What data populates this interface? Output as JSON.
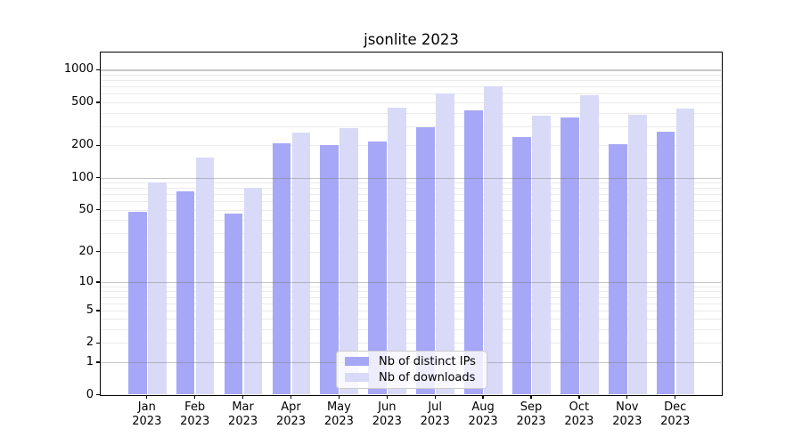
{
  "title": "jsonlite 2023",
  "chart_data": {
    "type": "bar",
    "title": "jsonlite 2023",
    "categories": [
      "Jan",
      "Feb",
      "Mar",
      "Apr",
      "May",
      "Jun",
      "Jul",
      "Aug",
      "Sep",
      "Oct",
      "Nov",
      "Dec"
    ],
    "x_tick_second_line": "2023",
    "series": [
      {
        "name": "Nb of distinct IPs",
        "color": "#a7a7f7",
        "values": [
          48,
          75,
          46,
          211,
          202,
          219,
          295,
          426,
          240,
          361,
          206,
          267
        ]
      },
      {
        "name": "Nb of downloads",
        "color": "#d9d9f8",
        "values": [
          90,
          153,
          80,
          265,
          286,
          451,
          607,
          707,
          380,
          588,
          385,
          437
        ]
      }
    ],
    "y_axis": {
      "scale": "log10(value+1)",
      "tick_values": [
        0,
        1,
        2,
        5,
        10,
        20,
        50,
        100,
        200,
        500,
        1000
      ],
      "major_grid_values": [
        1,
        10,
        100,
        1000
      ],
      "minor_grid_values": [
        2,
        3,
        4,
        5,
        6,
        7,
        8,
        9,
        20,
        30,
        40,
        50,
        60,
        70,
        80,
        90,
        200,
        300,
        400,
        500,
        600,
        700,
        800,
        900
      ],
      "ylim": [
        0,
        1435
      ]
    },
    "xlabel": "",
    "ylabel": "",
    "grid": true,
    "legend_position": "lower center"
  },
  "colors": {
    "bar_distinct_ips": "#a7a7f7",
    "bar_downloads": "#d9d9f8",
    "major_grid": "#c2c2c2",
    "minor_grid": "#ebebeb",
    "axis": "#000000",
    "background": "#ffffff"
  }
}
